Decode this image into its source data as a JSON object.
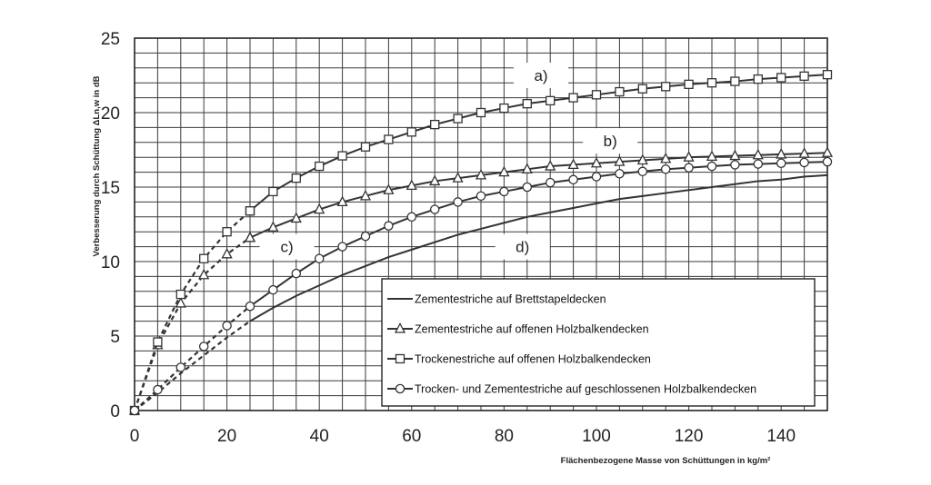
{
  "chart_data": {
    "type": "line",
    "xlabel": "Flächenbezogene Masse von Schüttungen in kg/m²",
    "ylabel": "Verbesserung durch Schüttung ΔLn,w in dB",
    "xlim": [
      0,
      150
    ],
    "ylim": [
      0,
      25
    ],
    "x_ticks": [
      "0",
      "20",
      "40",
      "60",
      "80",
      "100",
      "120",
      "140"
    ],
    "y_ticks": [
      "0",
      "5",
      "10",
      "15",
      "20",
      "25"
    ],
    "grid": true,
    "legend_position": "bottom-right",
    "series": [
      {
        "name": "Zementestriche auf Brettstapeldecken",
        "tag": "d)",
        "marker": "none",
        "x": [
          25,
          30,
          35,
          40,
          45,
          50,
          55,
          60,
          65,
          70,
          75,
          80,
          85,
          90,
          95,
          100,
          105,
          110,
          115,
          120,
          125,
          130,
          135,
          140,
          145,
          150
        ],
        "y": [
          6.0,
          6.9,
          7.7,
          8.4,
          9.1,
          9.7,
          10.3,
          10.8,
          11.3,
          11.8,
          12.2,
          12.6,
          13.0,
          13.3,
          13.6,
          13.9,
          14.2,
          14.4,
          14.6,
          14.8,
          15.0,
          15.2,
          15.4,
          15.5,
          15.7,
          15.8
        ],
        "dashed_x": [
          0,
          5,
          10,
          15,
          20,
          25
        ],
        "dashed_y": [
          0,
          1.2,
          2.5,
          3.7,
          4.9,
          6.0
        ]
      },
      {
        "name": "Zementestriche auf offenen Holzbalkendecken",
        "tag": "b)",
        "marker": "triangle",
        "x": [
          25,
          30,
          35,
          40,
          45,
          50,
          55,
          60,
          65,
          70,
          75,
          80,
          85,
          90,
          95,
          100,
          105,
          110,
          115,
          120,
          125,
          130,
          135,
          140,
          145,
          150
        ],
        "y": [
          11.6,
          12.3,
          12.9,
          13.5,
          14.0,
          14.4,
          14.8,
          15.1,
          15.4,
          15.6,
          15.8,
          16.0,
          16.2,
          16.4,
          16.5,
          16.6,
          16.7,
          16.8,
          16.9,
          17.0,
          17.05,
          17.1,
          17.15,
          17.2,
          17.25,
          17.3
        ],
        "dashed_x": [
          0,
          5,
          10,
          15,
          20,
          25
        ],
        "dashed_y": [
          0,
          4.4,
          7.2,
          9.1,
          10.5,
          11.6
        ]
      },
      {
        "name": "Trockenestriche auf offenen Holzbalkendecken",
        "tag": "a)",
        "marker": "square",
        "x": [
          25,
          30,
          35,
          40,
          45,
          50,
          55,
          60,
          65,
          70,
          75,
          80,
          85,
          90,
          95,
          100,
          105,
          110,
          115,
          120,
          125,
          130,
          135,
          140,
          145,
          150
        ],
        "y": [
          13.4,
          14.7,
          15.6,
          16.4,
          17.1,
          17.7,
          18.2,
          18.7,
          19.2,
          19.6,
          20.0,
          20.3,
          20.6,
          20.8,
          21.0,
          21.2,
          21.4,
          21.6,
          21.75,
          21.9,
          22.0,
          22.1,
          22.25,
          22.35,
          22.45,
          22.55
        ],
        "dashed_x": [
          0,
          5,
          10,
          15,
          20,
          25
        ],
        "dashed_y": [
          0,
          4.6,
          7.8,
          10.2,
          12.0,
          13.4
        ]
      },
      {
        "name": "Trocken- und Zementestriche auf geschlossenen Holzbalkendecken",
        "tag": "c)",
        "marker": "circle",
        "x": [
          25,
          30,
          35,
          40,
          45,
          50,
          55,
          60,
          65,
          70,
          75,
          80,
          85,
          90,
          95,
          100,
          105,
          110,
          115,
          120,
          125,
          130,
          135,
          140,
          145,
          150
        ],
        "y": [
          7.0,
          8.1,
          9.2,
          10.2,
          11.0,
          11.7,
          12.4,
          13.0,
          13.5,
          14.0,
          14.4,
          14.7,
          15.0,
          15.3,
          15.5,
          15.7,
          15.9,
          16.05,
          16.2,
          16.3,
          16.4,
          16.5,
          16.55,
          16.6,
          16.65,
          16.7
        ],
        "dashed_x": [
          0,
          5,
          10,
          15,
          20,
          25
        ],
        "dashed_y": [
          0,
          1.4,
          2.9,
          4.3,
          5.7,
          7.0
        ]
      }
    ],
    "curve_tags": [
      {
        "text": "a)",
        "x": 88,
        "y": 22.5
      },
      {
        "text": "b)",
        "x": 103,
        "y": 18.1
      },
      {
        "text": "c)",
        "x": 33,
        "y": 11.0
      },
      {
        "text": "d)",
        "x": 84,
        "y": 11.0
      }
    ],
    "legend": [
      {
        "marker": "none",
        "label": "Zementestriche auf Brettstapeldecken"
      },
      {
        "marker": "triangle",
        "label": "Zementestriche auf offenen Holzbalkendecken"
      },
      {
        "marker": "square",
        "label": "Trockenestriche auf offenen Holzbalkendecken"
      },
      {
        "marker": "circle",
        "label": "Trocken- und Zementestriche auf geschlossenen Holzbalkendecken"
      }
    ],
    "colors": {
      "line": "#333333",
      "grid": "#3a3a3a",
      "background": "#ffffff"
    }
  }
}
